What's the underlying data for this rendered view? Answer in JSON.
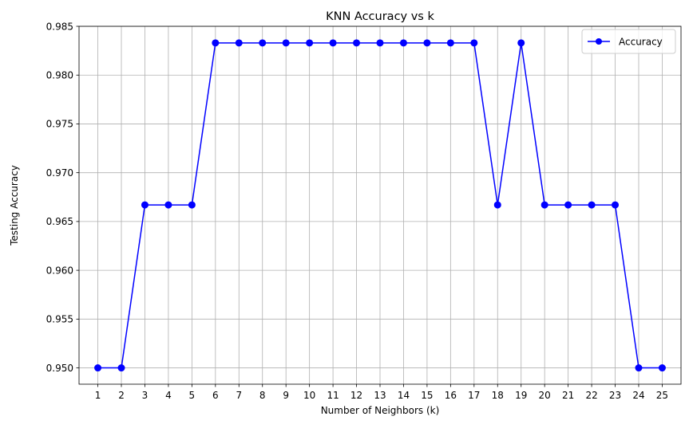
{
  "chart_data": {
    "type": "line",
    "title": "KNN Accuracy vs k",
    "xlabel": "Number of Neighbors (k)",
    "ylabel": "Testing Accuracy",
    "x": [
      1,
      2,
      3,
      4,
      5,
      6,
      7,
      8,
      9,
      10,
      11,
      12,
      13,
      14,
      15,
      16,
      17,
      18,
      19,
      20,
      21,
      22,
      23,
      24,
      25
    ],
    "series": [
      {
        "name": "Accuracy",
        "color": "#0000ff",
        "marker": "circle",
        "values": [
          0.95,
          0.95,
          0.9667,
          0.9667,
          0.9667,
          0.9833,
          0.9833,
          0.9833,
          0.9833,
          0.9833,
          0.9833,
          0.9833,
          0.9833,
          0.9833,
          0.9833,
          0.9833,
          0.9833,
          0.9667,
          0.9833,
          0.9667,
          0.9667,
          0.9667,
          0.9667,
          0.95,
          0.95
        ]
      }
    ],
    "xlim": [
      0.2,
      25.8
    ],
    "ylim": [
      0.94833,
      0.985
    ],
    "xticks": [
      1,
      2,
      3,
      4,
      5,
      6,
      7,
      8,
      9,
      10,
      11,
      12,
      13,
      14,
      15,
      16,
      17,
      18,
      19,
      20,
      21,
      22,
      23,
      24,
      25
    ],
    "yticks": [
      0.95,
      0.955,
      0.96,
      0.965,
      0.97,
      0.975,
      0.98,
      0.985
    ],
    "ytick_labels": [
      "0.950",
      "0.955",
      "0.960",
      "0.965",
      "0.970",
      "0.975",
      "0.980",
      "0.985"
    ],
    "grid": true,
    "legend": "top-right"
  }
}
